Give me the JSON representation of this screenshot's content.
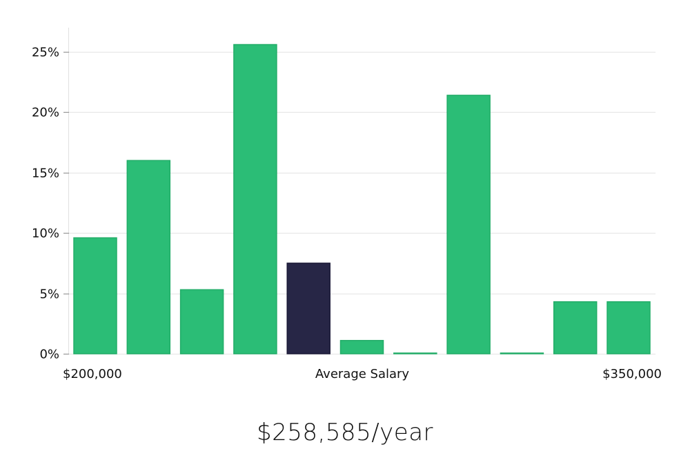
{
  "chart_data": {
    "type": "bar",
    "x_tick_labels": [
      "$200,000",
      "Average Salary",
      "$350,000"
    ],
    "y_ticks": [
      {
        "value": 0,
        "label": "0%"
      },
      {
        "value": 5,
        "label": "5%"
      },
      {
        "value": 10,
        "label": "10%"
      },
      {
        "value": 15,
        "label": "15%"
      },
      {
        "value": 20,
        "label": "20%"
      },
      {
        "value": 25,
        "label": "25%"
      }
    ],
    "ylim": [
      0,
      27
    ],
    "grid": true,
    "values": [
      9.6,
      16.0,
      5.3,
      25.6,
      7.5,
      1.1,
      0.05,
      21.4,
      0.05,
      4.3,
      4.3
    ],
    "highlight_index": 4,
    "colors": {
      "bar": "#2bbd76",
      "bar_stroke": "#22ad68",
      "highlight": "#272646",
      "highlight_stroke": "#1c1b38",
      "grid": "#e3e3e3",
      "axis": "#e0e0e0"
    }
  },
  "salary_label": "$258,585/year"
}
